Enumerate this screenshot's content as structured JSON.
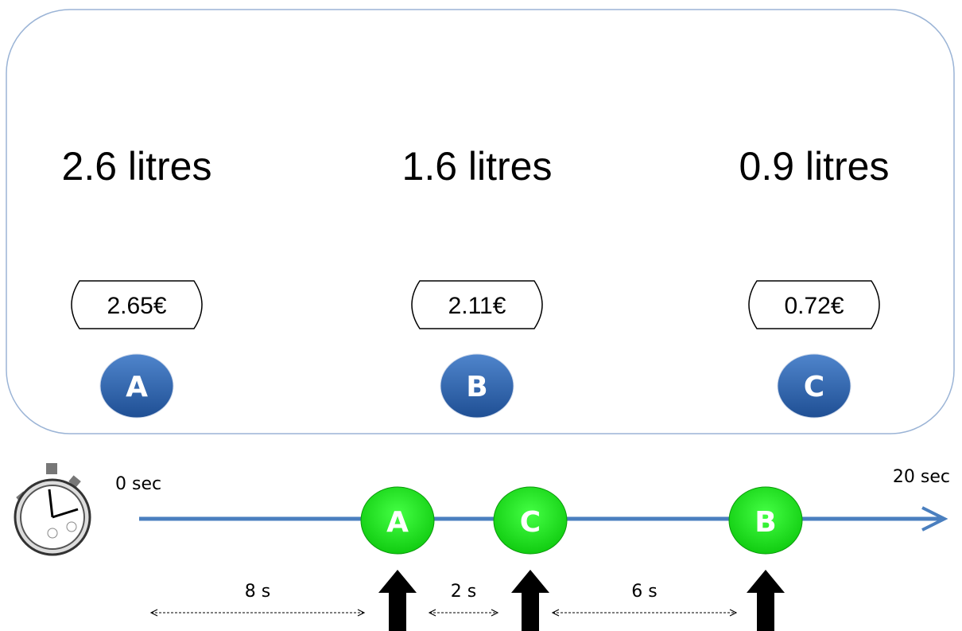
{
  "options": [
    {
      "volume": "2.6 litres",
      "price": "2.65€",
      "label": "A"
    },
    {
      "volume": "1.6 litres",
      "price": "2.11€",
      "label": "B"
    },
    {
      "volume": "0.9 litres",
      "price": "0.72€",
      "label": "C"
    }
  ],
  "timeline": {
    "start": "0 sec",
    "end": "20 sec",
    "events": [
      "A",
      "C",
      "B"
    ],
    "intervals": [
      "8 s",
      "2 s",
      "6 s"
    ]
  }
}
